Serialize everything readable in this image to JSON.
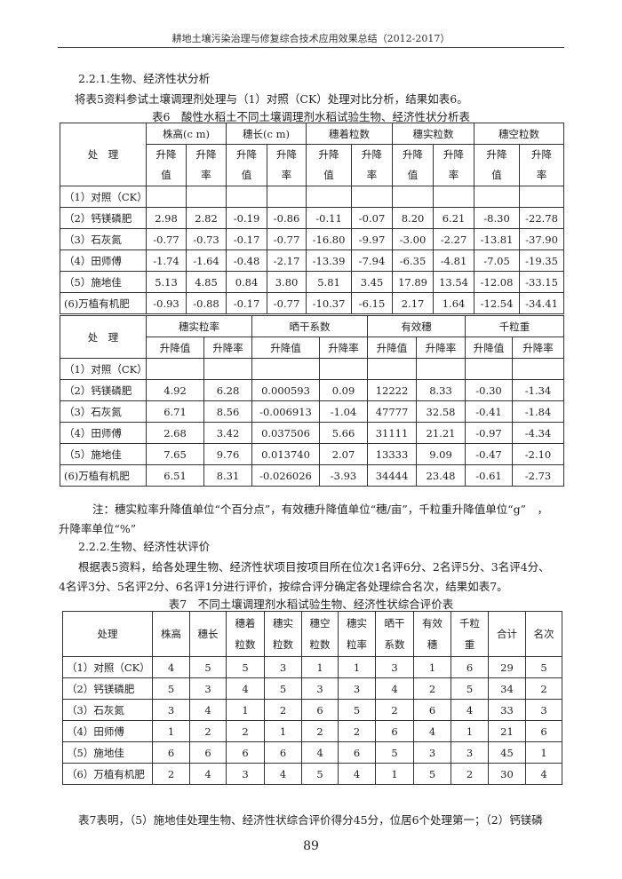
{
  "header": "耕地土壤污染治理与修复综合技术应用效果总结（2012-2017）",
  "section1": "2.2.1.生物、经济性状分析",
  "para1": "将表5资料参试土壤调理剂处理与（1）对照（CK）处理对比分析，结果如表6。",
  "table6": {
    "caption": "表6　酸性水稻土不同土壤调理剂水稻试验生物、经济性状分析表",
    "corner": "处　理",
    "part1": {
      "groups": [
        "株高(c m)",
        "穗长(c m)",
        "穗着粒数",
        "穗实粒数",
        "穗空粒数"
      ],
      "sub": [
        "升降值",
        "升降率"
      ],
      "rows": [
        [
          "（1）对照（CK）",
          "",
          "",
          "",
          "",
          "",
          "",
          "",
          "",
          "",
          ""
        ],
        [
          "（2）钙镁磷肥",
          "2.98",
          "2.82",
          "-0.19",
          "-0.86",
          "-0.11",
          "-0.07",
          "8.20",
          "6.21",
          "-8.30",
          "-22.78"
        ],
        [
          "（3）石灰氮",
          "-0.77",
          "-0.73",
          "-0.17",
          "-0.77",
          "-16.80",
          "-9.97",
          "-3.00",
          "-2.27",
          "-13.81",
          "-37.90"
        ],
        [
          "（4）田师傅",
          "-1.74",
          "-1.64",
          "-0.48",
          "-2.17",
          "-13.39",
          "-7.94",
          "-6.35",
          "-4.81",
          "-7.05",
          "-19.35"
        ],
        [
          "（5）施地佳",
          "5.13",
          "4.85",
          "0.84",
          "3.80",
          "5.81",
          "3.45",
          "17.89",
          "13.54",
          "-12.08",
          "-33.15"
        ],
        [
          "(6)万植有机肥",
          "-0.93",
          "-0.88",
          "-0.17",
          "-0.77",
          "-10.37",
          "-6.15",
          "2.17",
          "1.64",
          "-12.54",
          "-34.41"
        ]
      ]
    },
    "part2": {
      "groups": [
        "穗实粒率",
        "晒干系数",
        "有效穗",
        "千粒重"
      ],
      "sub": [
        "升降值",
        "升降率"
      ],
      "rows": [
        [
          "（1）对照（CK）",
          "",
          "",
          "",
          "",
          "",
          "",
          "",
          ""
        ],
        [
          "（2）钙镁磷肥",
          "4.92",
          "6.28",
          "0.000593",
          "0.09",
          "12222",
          "8.33",
          "-0.30",
          "-1.34"
        ],
        [
          "（3）石灰氮",
          "6.71",
          "8.56",
          "-0.006913",
          "-1.04",
          "47777",
          "32.58",
          "-0.41",
          "-1.84"
        ],
        [
          "（4）田师傅",
          "2.68",
          "3.42",
          "0.037506",
          "5.66",
          "31111",
          "21.21",
          "-0.97",
          "-4.34"
        ],
        [
          "（5）施地佳",
          "7.65",
          "9.76",
          "0.013740",
          "2.07",
          "13333",
          "9.09",
          "-0.47",
          "-2.10"
        ],
        [
          "(6)万植有机肥",
          "6.51",
          "8.31",
          "-0.026026",
          "-3.93",
          "34444",
          "23.48",
          "-0.61",
          "-2.73"
        ]
      ]
    },
    "note_line1": "注：穗实粒率升降值单位“个百分点”，有效穗升降值单位“穗/亩”，千粒重升降值单位“g”　，",
    "note_line2": "升降率单位“%”"
  },
  "section2": "2.2.2.生物、经济性状评价",
  "para2_line1": "根据表5资料，给各处理生物、经济性状项目按项目所在位次1名评6分、2名评5分、3名评4分、",
  "para2_line2": "4名评3分、5名评2分、6名评1分进行评价，按综合评分确定各处理综合名次，结果如表7。",
  "table7": {
    "caption": "表7　不同土壤调理剂水稻试验生物、经济性状综合评价表",
    "headers": [
      "处理",
      "株高",
      "穗长",
      "穗着\n粒数",
      "穗实\n粒数",
      "穗空\n粒数",
      "穗实\n粒率",
      "晒干\n系数",
      "有效\n穗",
      "千粒\n重",
      "合计",
      "名次"
    ],
    "rows": [
      [
        "（1）对照（CK）",
        "4",
        "5",
        "5",
        "3",
        "1",
        "1",
        "3",
        "1",
        "6",
        "29",
        "5"
      ],
      [
        "（2）钙镁磷肥",
        "5",
        "3",
        "4",
        "5",
        "3",
        "3",
        "4",
        "2",
        "5",
        "34",
        "2"
      ],
      [
        "（3）石灰氮",
        "3",
        "4",
        "1",
        "2",
        "6",
        "5",
        "2",
        "6",
        "4",
        "33",
        "3"
      ],
      [
        "（4）田师傅",
        "1",
        "2",
        "2",
        "1",
        "2",
        "2",
        "6",
        "4",
        "1",
        "21",
        "6"
      ],
      [
        "（5）施地佳",
        "6",
        "6",
        "6",
        "6",
        "4",
        "6",
        "5",
        "3",
        "3",
        "45",
        "1"
      ],
      [
        "（6）万植有机肥",
        "2",
        "4",
        "3",
        "4",
        "5",
        "4",
        "1",
        "5",
        "2",
        "30",
        "4"
      ]
    ]
  },
  "para3": "表7表明，（5）施地佳处理生物、经济性状综合评价得分45分，位居6个处理第一；（2）钙镁磷",
  "page_number": "89"
}
